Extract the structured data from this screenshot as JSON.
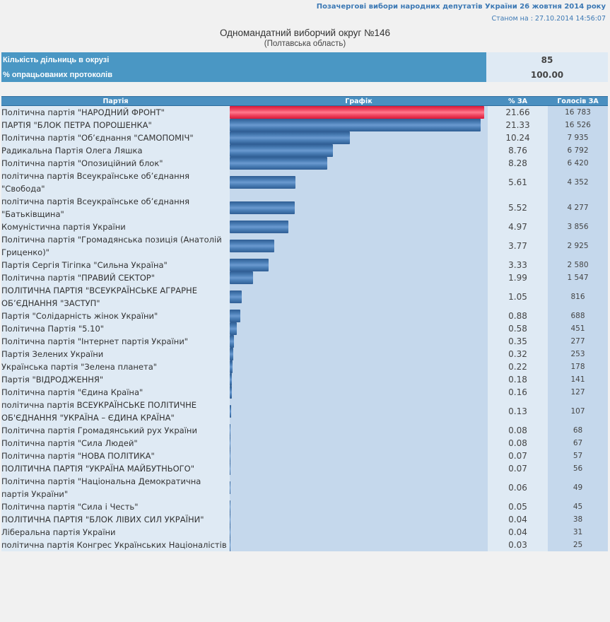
{
  "header": {
    "election_title": "Позачергові вибори народних депутатів України 26 жовтня 2014 року",
    "status_date": "Станом на : 27.10.2014 14:56:07",
    "district_title": "Одномандатний виборчий округ №146",
    "region": "(Полтавська область)"
  },
  "summary": {
    "rows": [
      {
        "label": "Кількість дільниць в окрузі",
        "value": "85"
      },
      {
        "label": "% опрацьованих протоколів",
        "value": "100.00"
      }
    ]
  },
  "table": {
    "columns": [
      "Партія",
      "Графік",
      "% ЗА",
      "Голосів ЗА"
    ]
  },
  "colors": {
    "leader_bar": "#e8283f",
    "bar": "#4a7db5",
    "header_bg": "#4a8fc0",
    "title_link": "#3b78b4"
  },
  "chart_data": {
    "type": "bar",
    "orientation": "horizontal",
    "title": "Одномандатний виборчий округ №146",
    "xlabel": "% ЗА",
    "ylabel": "Партія",
    "xlim": [
      0,
      21.66
    ],
    "categories": [
      "Політична партія \"НАРОДНИЙ ФРОНТ\"",
      "ПАРТІЯ \"БЛОК ПЕТРА ПОРОШЕНКА\"",
      "Політична партія \"Об’єднання \"САМОПОМІЧ\"",
      "Радикальна Партія Олега Ляшка",
      "Політична партія \"Опозиційний блок\"",
      "політична партія Всеукраїнське об’єднання \"Свобода\"",
      "політична партія Всеукраїнське об’єднання \"Батьківщина\"",
      "Комуністична партія України",
      "Політична партія \"Громадянська позиція (Анатолій Гриценко)\"",
      "Партія Сергія Тігіпка \"Сильна Україна\"",
      "Політична партія \"ПРАВИЙ СЕКТОР\"",
      "ПОЛІТИЧНА ПАРТІЯ \"ВСЕУКРАЇНСЬКЕ АГРАРНЕ ОБ’ЄДНАННЯ \"ЗАСТУП\"",
      "Партія \"Солідарність жінок України\"",
      "Політична Партія \"5.10\"",
      "Політична партія \"Інтернет партія України\"",
      "Партія Зелених України",
      "Українська партія \"Зелена планета\"",
      "Партія \"ВІДРОДЖЕННЯ\"",
      "Політична партія \"Єдина Країна\"",
      "політична партія ВСЕУКРАЇНСЬКЕ ПОЛІТИЧНЕ ОБ'ЄДНАННЯ \"УКРАЇНА – ЄДИНА КРАЇНА\"",
      "Політична партія Громадянський рух України",
      "Політична партія \"Сила Людей\"",
      "Політична партія \"НОВА ПОЛІТИКА\"",
      "ПОЛІТИЧНА ПАРТІЯ \"УКРАЇНА МАЙБУТНЬОГО\"",
      "Політична партія \"Національна Демократична партія України\"",
      "Політична партія \"Сила і Честь\"",
      "ПОЛІТИЧНА ПАРТІЯ \"БЛОК ЛІВИХ СИЛ УКРАЇНИ\"",
      "Ліберальна партія України",
      "політична партія Конгрес Українських Націоналістів"
    ],
    "series": [
      {
        "name": "% ЗА",
        "values": [
          21.66,
          21.33,
          10.24,
          8.76,
          8.28,
          5.61,
          5.52,
          4.97,
          3.77,
          3.33,
          1.99,
          1.05,
          0.88,
          0.58,
          0.35,
          0.32,
          0.22,
          0.18,
          0.16,
          0.13,
          0.08,
          0.08,
          0.07,
          0.07,
          0.06,
          0.05,
          0.04,
          0.04,
          0.03
        ]
      },
      {
        "name": "Голосів ЗА",
        "values": [
          16783,
          16526,
          7935,
          6792,
          6420,
          4352,
          4277,
          3856,
          2925,
          2580,
          1547,
          816,
          688,
          451,
          277,
          253,
          178,
          141,
          127,
          107,
          68,
          67,
          57,
          56,
          49,
          45,
          38,
          31,
          25
        ]
      }
    ],
    "pct_labels": [
      "21.66",
      "21.33",
      "10.24",
      "8.76",
      "8.28",
      "5.61",
      "5.52",
      "4.97",
      "3.77",
      "3.33",
      "1.99",
      "1.05",
      "0.88",
      "0.58",
      "0.35",
      "0.32",
      "0.22",
      "0.18",
      "0.16",
      "0.13",
      "0.08",
      "0.08",
      "0.07",
      "0.07",
      "0.06",
      "0.05",
      "0.04",
      "0.04",
      "0.03"
    ],
    "votes_labels": [
      "16 783",
      "16 526",
      "7 935",
      "6 792",
      "6 420",
      "4 352",
      "4 277",
      "3 856",
      "2 925",
      "2 580",
      "1 547",
      "816",
      "688",
      "451",
      "277",
      "253",
      "178",
      "141",
      "127",
      "107",
      "68",
      "67",
      "57",
      "56",
      "49",
      "45",
      "38",
      "31",
      "25"
    ],
    "two_line_rows": [
      6,
      8,
      11,
      19,
      24
    ],
    "grid": false,
    "legend": "none"
  }
}
